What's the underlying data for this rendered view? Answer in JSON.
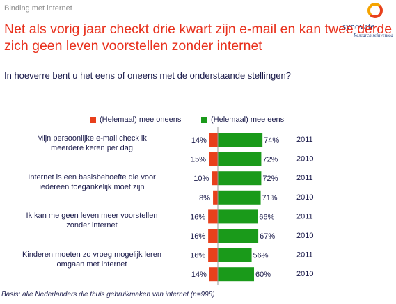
{
  "header": {
    "topline": "Binding met internet",
    "logo_word": "synovate",
    "logo_sub": "Research reinvented",
    "headline": "Net als vorig jaar checkt drie kwart zijn e-mail en kan twee derde zich geen leven voorstellen zonder internet",
    "question": "In hoeverre bent u het eens of oneens met de onderstaande stellingen?"
  },
  "colors": {
    "negative": "#e8401c",
    "positive": "#1a9a1a",
    "title": "#e8301c",
    "axis": "#9a9a9a"
  },
  "chart_data": {
    "type": "bar",
    "legend": [
      {
        "name": "(Helemaal) mee oneens",
        "color": "#e8401c"
      },
      {
        "name": "(Helemaal) mee eens",
        "color": "#1a9a1a"
      }
    ],
    "statements": [
      "Mijn persoonlijke e-mail check ik meerdere keren per dag",
      "Internet is een basisbehoefte die voor iedereen toegankelijk moet zijn",
      "Ik kan me geen leven meer voorstellen zonder internet",
      "Kinderen moeten zo vroeg mogelijk leren omgaan met internet"
    ],
    "rows": [
      {
        "statement": 0,
        "year": "2011",
        "disagree": 14,
        "agree": 74
      },
      {
        "statement": 0,
        "year": "2010",
        "disagree": 15,
        "agree": 72
      },
      {
        "statement": 1,
        "year": "2011",
        "disagree": 10,
        "agree": 72
      },
      {
        "statement": 1,
        "year": "2010",
        "disagree": 8,
        "agree": 71
      },
      {
        "statement": 2,
        "year": "2011",
        "disagree": 16,
        "agree": 66
      },
      {
        "statement": 2,
        "year": "2010",
        "disagree": 16,
        "agree": 67
      },
      {
        "statement": 3,
        "year": "2011",
        "disagree": 16,
        "agree": 56
      },
      {
        "statement": 3,
        "year": "2010",
        "disagree": 14,
        "agree": 60
      }
    ]
  },
  "footnote": "Basis: alle Nederlanders die thuis gebruikmaken van internet (n=998)"
}
